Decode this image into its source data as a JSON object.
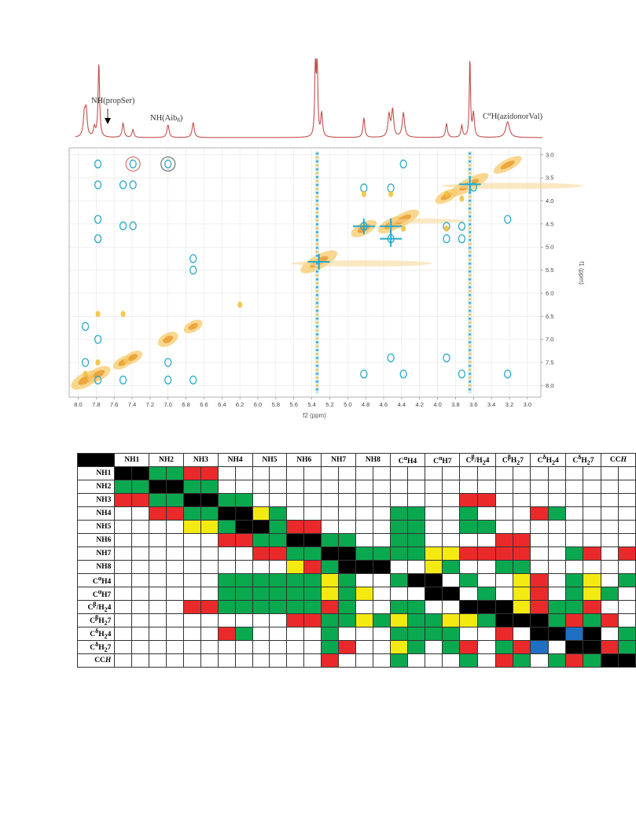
{
  "figure": {
    "peak_labels": [
      "NH(propSer)",
      "NH(Aib",
      "8",
      ")",
      "C",
      "α",
      "H(azidonorVal)"
    ],
    "x_ticks": [
      "8.0",
      "7.8",
      "7.6",
      "7.4",
      "7.2",
      "7.0",
      "6.8",
      "6.6",
      "6.4",
      "6.2",
      "6.0",
      "5.8",
      "5.6",
      "5.4",
      "5.2",
      "5.0",
      "4.8",
      "4.6",
      "4.4",
      "4.2",
      "4.0",
      "3.8",
      "3.6",
      "3.4",
      "3.2",
      "3.0"
    ],
    "x_label": "f2 (ppm)",
    "y_ticks": [
      "3.0",
      "3.5",
      "4.0",
      "4.5",
      "5.0",
      "5.5",
      "6.0",
      "6.5",
      "7.0",
      "7.5",
      "8.0"
    ],
    "y_label": "f1 (ppm)",
    "colors": {
      "spectrum": "#c0504d",
      "noe": "#f2b134",
      "roe": "#2aa8c8",
      "circle_red": "#e07070",
      "circle_grey": "#707070"
    }
  },
  "table": {
    "columns": [
      "NH1",
      "NH2",
      "NH3",
      "NH4",
      "NH5",
      "NH6",
      "NH7",
      "NH8",
      "CαH4",
      "CαH7",
      "Cβ/H₂4",
      "CβH₂7",
      "CδH₂4",
      "CδH₂7",
      "CCH"
    ],
    "rows": [
      {
        "label": "NH1",
        "cells": "kkggrrnnnnnnnnnnnnnnnnnnnnnnnn"
      },
      {
        "label": "NH2",
        "cells": "ggkkggnnnnnnnnnnnnnnnnnnnnnnnn"
      },
      {
        "label": "NH3",
        "cells": "rrggkkggnnnnnnnnnnnnrrnnnnnnnn"
      },
      {
        "label": "NH4",
        "cells": "nnrrggkkygnnnnnnggnngnnnrgnnnn"
      },
      {
        "label": "NH5",
        "cells": "nnnnyygkkgrrnnnnggnnggnnnnnnnn"
      },
      {
        "label": "NH6",
        "cells": "nnnnnnrrggkkggnnggnnnnrrnnnnnn"
      },
      {
        "label": "NH7",
        "cells": "nnnnnnnnrrggkkggggyyrrrrnngrnr"
      },
      {
        "label": "NH8",
        "cells": "nnnnnnnnnnyrgkkknnygnnggnnnnnn"
      },
      {
        "label": "CαH4",
        "cells": "nnnnnnggggggygnngkkngnnyrngyng"
      },
      {
        "label": "CαH7",
        "cells": "nnnnnnggggggygynnnkkngnyrngygn"
      },
      {
        "label": "Cβ/H₂4",
        "cells": "nnnnrrggggggrgnnggnnkkkyrggrnn"
      },
      {
        "label": "CβH₂7",
        "cells": "nnnnnnnnnnrrggygyggyygkkkgrgrn"
      },
      {
        "label": "CδH₂4",
        "cells": "nnnnnnrgnnnngnnnggggnnrnkkbkng"
      },
      {
        "label": "CδH₂7",
        "cells": "nnnnnnnnnnnngrnnygngrngrbnkkrg"
      },
      {
        "label": "CCH",
        "cells": "nnnnnnnnnnnnrnnngnnngnrgngrgkk"
      }
    ]
  }
}
